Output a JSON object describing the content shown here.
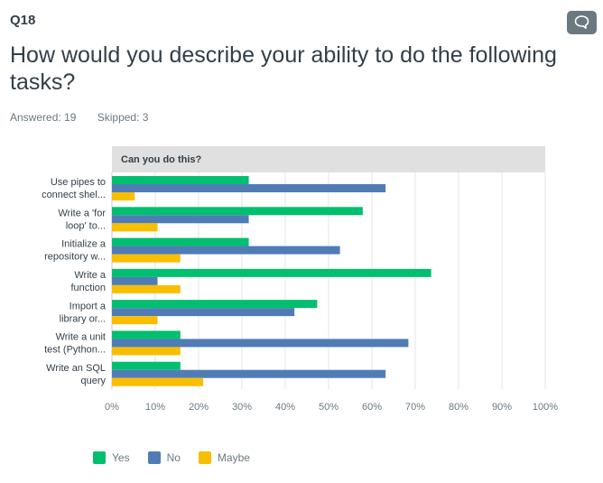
{
  "question": {
    "number": "Q18",
    "title": "How would you describe your ability to do the following tasks?",
    "answered": "Answered: 19",
    "skipped": "Skipped: 3"
  },
  "icons": {
    "comment": "comment-bubble-icon"
  },
  "colors": {
    "Yes": "#00bf6f",
    "No": "#507cb6",
    "Maybe": "#f9be00",
    "header_bg": "#e0e0e0"
  },
  "chart_data": {
    "type": "bar",
    "orientation": "horizontal",
    "header": "Can you do this?",
    "categories": [
      [
        "Use pipes to",
        "connect shel..."
      ],
      [
        "Write a 'for",
        "loop' to..."
      ],
      [
        "Initialize a",
        "repository w..."
      ],
      [
        "Write a",
        "function"
      ],
      [
        "Import a",
        "library or..."
      ],
      [
        "Write a unit",
        "test (Python..."
      ],
      [
        "Write an SQL",
        "query"
      ]
    ],
    "series": [
      {
        "name": "Yes",
        "values": [
          31.58,
          57.89,
          31.58,
          73.68,
          47.37,
          15.79,
          15.79
        ]
      },
      {
        "name": "No",
        "values": [
          63.16,
          31.58,
          52.63,
          10.53,
          42.11,
          68.42,
          63.16
        ]
      },
      {
        "name": "Maybe",
        "values": [
          5.26,
          10.53,
          15.79,
          15.79,
          10.53,
          15.79,
          21.05
        ]
      }
    ],
    "xlim": [
      0,
      100
    ],
    "xticks": [
      "0%",
      "10%",
      "20%",
      "30%",
      "40%",
      "50%",
      "60%",
      "70%",
      "80%",
      "90%",
      "100%"
    ],
    "grid": true,
    "legend": "bottom-left"
  }
}
